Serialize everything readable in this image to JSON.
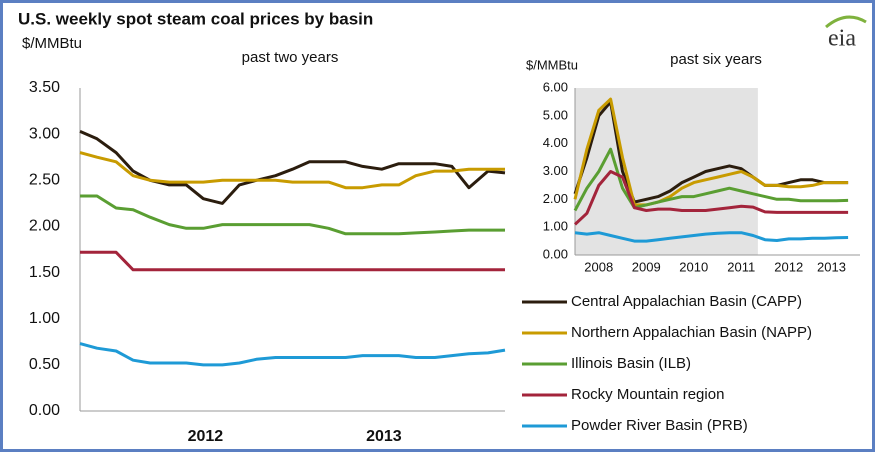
{
  "title": "U.S. weekly spot steam coal prices by basin",
  "logo": "eia",
  "chart_data": [
    {
      "type": "line",
      "subtitle": "past two years",
      "ylabel": "$/MMBtu",
      "xlim": [
        2011.85,
        2013.85
      ],
      "xticks": [
        {
          "value": 2012.44,
          "label": "2012"
        },
        {
          "value": 2013.28,
          "label": "2013"
        }
      ],
      "ylim": [
        0,
        3.5
      ],
      "yticks": [
        {
          "value": 0,
          "label": "0.00"
        },
        {
          "value": 0.5,
          "label": "0.50"
        },
        {
          "value": 1,
          "label": "1.00"
        },
        {
          "value": 1.5,
          "label": "1.50"
        },
        {
          "value": 2,
          "label": "2.00"
        },
        {
          "value": 2.5,
          "label": "2.50"
        },
        {
          "value": 3,
          "label": "3.00"
        },
        {
          "value": 3.5,
          "label": "3.50"
        }
      ],
      "x": [
        2011.85,
        2011.93,
        2012.02,
        2012.1,
        2012.18,
        2012.27,
        2012.35,
        2012.43,
        2012.52,
        2012.6,
        2012.68,
        2012.77,
        2012.85,
        2012.93,
        2013.02,
        2013.1,
        2013.18,
        2013.27,
        2013.35,
        2013.43,
        2013.52,
        2013.6,
        2013.68,
        2013.77,
        2013.85
      ],
      "series": [
        {
          "color": "#2b1d0e",
          "values": [
            3.03,
            2.95,
            2.8,
            2.6,
            2.5,
            2.45,
            2.45,
            2.3,
            2.25,
            2.45,
            2.5,
            2.55,
            2.62,
            2.7,
            2.7,
            2.7,
            2.65,
            2.62,
            2.68,
            2.68,
            2.68,
            2.65,
            2.42,
            2.6,
            2.58
          ]
        },
        {
          "color": "#c89b00",
          "values": [
            2.8,
            2.75,
            2.7,
            2.55,
            2.5,
            2.48,
            2.48,
            2.48,
            2.5,
            2.5,
            2.5,
            2.5,
            2.48,
            2.48,
            2.48,
            2.42,
            2.42,
            2.45,
            2.45,
            2.55,
            2.6,
            2.6,
            2.62,
            2.62,
            2.62
          ]
        },
        {
          "color": "#5a9e32",
          "values": [
            2.33,
            2.33,
            2.2,
            2.18,
            2.1,
            2.02,
            1.98,
            1.98,
            2.02,
            2.02,
            2.02,
            2.02,
            2.02,
            2.02,
            1.98,
            1.92,
            1.92,
            1.92,
            1.92,
            1.93,
            1.94,
            1.95,
            1.96,
            1.96,
            1.96
          ]
        },
        {
          "color": "#a3243b",
          "values": [
            1.72,
            1.72,
            1.72,
            1.53,
            1.53,
            1.53,
            1.53,
            1.53,
            1.53,
            1.53,
            1.53,
            1.53,
            1.53,
            1.53,
            1.53,
            1.53,
            1.53,
            1.53,
            1.53,
            1.53,
            1.53,
            1.53,
            1.53,
            1.53,
            1.53
          ]
        },
        {
          "color": "#1e9ad6",
          "values": [
            0.73,
            0.68,
            0.65,
            0.55,
            0.52,
            0.52,
            0.52,
            0.5,
            0.5,
            0.52,
            0.56,
            0.58,
            0.58,
            0.58,
            0.58,
            0.58,
            0.6,
            0.6,
            0.6,
            0.58,
            0.58,
            0.6,
            0.62,
            0.63,
            0.66
          ]
        }
      ]
    },
    {
      "type": "line",
      "subtitle": "past six years",
      "ylabel": "$/MMBtu",
      "xlim": [
        2008,
        2014
      ],
      "shaded_xrange": [
        2008,
        2011.85
      ],
      "xticks": [
        {
          "value": 2008.5,
          "label": "2008"
        },
        {
          "value": 2009.5,
          "label": "2009"
        },
        {
          "value": 2010.5,
          "label": "2010"
        },
        {
          "value": 2011.5,
          "label": "2011"
        },
        {
          "value": 2012.5,
          "label": "2012"
        },
        {
          "value": 2013.4,
          "label": "2013"
        }
      ],
      "ylim": [
        0,
        6
      ],
      "yticks": [
        {
          "value": 0,
          "label": "0.00"
        },
        {
          "value": 1,
          "label": "1.00"
        },
        {
          "value": 2,
          "label": "2.00"
        },
        {
          "value": 3,
          "label": "3.00"
        },
        {
          "value": 4,
          "label": "4.00"
        },
        {
          "value": 5,
          "label": "5.00"
        },
        {
          "value": 6,
          "label": "6.00"
        }
      ],
      "x": [
        2008,
        2008.25,
        2008.5,
        2008.75,
        2009,
        2009.25,
        2009.5,
        2009.75,
        2010,
        2010.25,
        2010.5,
        2010.75,
        2011,
        2011.25,
        2011.5,
        2011.75,
        2012,
        2012.25,
        2012.5,
        2012.75,
        2013,
        2013.25,
        2013.5,
        2013.75
      ],
      "series": [
        {
          "name": "Central Appalachian Basin (CAPP)",
          "color": "#2b1d0e",
          "values": [
            2.2,
            3.5,
            5.0,
            5.5,
            3.0,
            1.9,
            2.0,
            2.1,
            2.3,
            2.6,
            2.8,
            3.0,
            3.1,
            3.2,
            3.1,
            2.8,
            2.5,
            2.5,
            2.6,
            2.7,
            2.7,
            2.6,
            2.6,
            2.6
          ]
        },
        {
          "name": "Northern Appalachian Basin (NAPP)",
          "color": "#c89b00",
          "values": [
            2.0,
            3.8,
            5.2,
            5.6,
            3.5,
            1.8,
            1.8,
            1.9,
            2.1,
            2.4,
            2.6,
            2.7,
            2.8,
            2.9,
            3.0,
            2.8,
            2.5,
            2.5,
            2.45,
            2.45,
            2.5,
            2.6,
            2.6,
            2.6
          ]
        },
        {
          "name": "Illinois Basin (ILB)",
          "color": "#5a9e32",
          "values": [
            1.6,
            2.4,
            3.0,
            3.8,
            2.4,
            1.7,
            1.8,
            1.9,
            2.0,
            2.1,
            2.1,
            2.2,
            2.3,
            2.4,
            2.3,
            2.2,
            2.1,
            2.0,
            2.0,
            1.95,
            1.95,
            1.95,
            1.95,
            1.96
          ]
        },
        {
          "name": "Rocky Mountain region",
          "color": "#a3243b",
          "values": [
            1.1,
            1.5,
            2.5,
            3.0,
            2.8,
            1.7,
            1.6,
            1.65,
            1.65,
            1.6,
            1.6,
            1.6,
            1.65,
            1.7,
            1.75,
            1.72,
            1.55,
            1.53,
            1.53,
            1.53,
            1.53,
            1.53,
            1.53,
            1.53
          ]
        },
        {
          "name": "Powder River Basin (PRB)",
          "color": "#1e9ad6",
          "values": [
            0.8,
            0.75,
            0.8,
            0.7,
            0.6,
            0.5,
            0.5,
            0.55,
            0.6,
            0.65,
            0.7,
            0.75,
            0.78,
            0.8,
            0.8,
            0.7,
            0.55,
            0.52,
            0.58,
            0.58,
            0.6,
            0.6,
            0.62,
            0.63
          ]
        }
      ]
    }
  ]
}
